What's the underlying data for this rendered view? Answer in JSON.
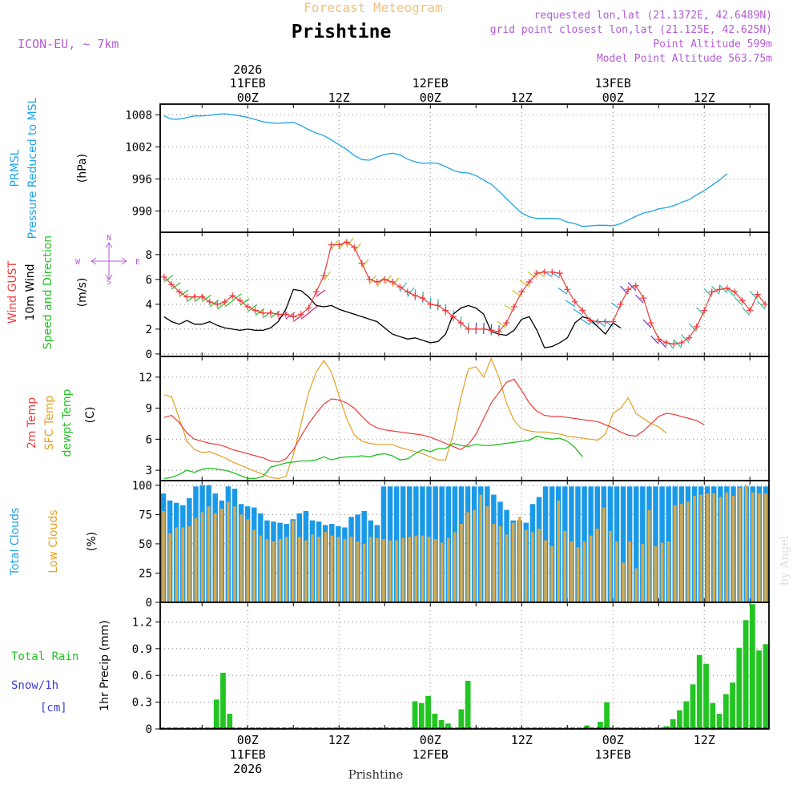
{
  "header": {
    "product": "Forecast Meteogram",
    "location": "Prishtine",
    "model": "ICON-EU, ~ 7km",
    "requested": "requested lon,lat (21.1372E, 42.6489N)",
    "grid_point": "grid point closest lon,lat (21.125E, 42.625N)",
    "point_altitude": "Point Altitude 599m",
    "model_altitude": "Model Point Altitude 563.75m",
    "footer_location": "Prishtine",
    "watermark": "by Angel"
  },
  "colors": {
    "pressure": "#1fa3e6",
    "gust": "#ee3b3b",
    "wind": "#000000",
    "t2m": "#ee3b3b",
    "sfc": "#e5a020",
    "dewpt": "#22c022",
    "total_clouds": "#1a99e8",
    "low_clouds": "#d9a84a",
    "rain": "#22c522",
    "snow": "#3b3bd9",
    "label_purple": "#b45bd6",
    "title_orange": "#f0c080"
  },
  "time_axis": {
    "top_labels": [
      {
        "hour": 0,
        "l1": "2026",
        "l2": "11FEB",
        "l3": "00Z"
      },
      {
        "hour": 12,
        "l1": "",
        "l2": "",
        "l3": "12Z"
      },
      {
        "hour": 24,
        "l1": "",
        "l2": "12FEB",
        "l3": "00Z"
      },
      {
        "hour": 36,
        "l1": "",
        "l2": "",
        "l3": "12Z"
      },
      {
        "hour": 48,
        "l1": "",
        "l2": "13FEB",
        "l3": "00Z"
      },
      {
        "hour": 60,
        "l1": "",
        "l2": "",
        "l3": "12Z"
      }
    ],
    "bottom_labels": [
      {
        "hour": 0,
        "l1": "00Z",
        "l2": "11FEB",
        "l3": "2026"
      },
      {
        "hour": 12,
        "l1": "12Z",
        "l2": "",
        "l3": ""
      },
      {
        "hour": 24,
        "l1": "00Z",
        "l2": "12FEB",
        "l3": ""
      },
      {
        "hour": 36,
        "l1": "12Z",
        "l2": "",
        "l3": ""
      },
      {
        "hour": 48,
        "l1": "00Z",
        "l2": "13FEB",
        "l3": ""
      },
      {
        "hour": 60,
        "l1": "12Z",
        "l2": "",
        "l3": ""
      }
    ]
  },
  "chart_data": [
    {
      "type": "line",
      "name": "pressure",
      "ylabel_lines": [
        "PRMSL",
        "Pressure Reduced to MSL"
      ],
      "unit": "(hPa)",
      "ylim": [
        986,
        1010
      ],
      "yticks": [
        990,
        996,
        1002,
        1008
      ],
      "hour_start": -11,
      "hour_step": 1,
      "series": [
        {
          "name": "PRMSL",
          "values": [
            1007.8,
            1007.2,
            1007.2,
            1007.5,
            1007.8,
            1007.8,
            1007.9,
            1008.1,
            1008.2,
            1008.0,
            1007.8,
            1007.5,
            1007.1,
            1006.7,
            1006.5,
            1006.4,
            1006.5,
            1006.6,
            1006.0,
            1005.2,
            1004.6,
            1004.1,
            1003.3,
            1002.4,
            1001.5,
            1000.4,
            999.6,
            999.5,
            1000.1,
            1000.6,
            1000.8,
            1000.5,
            999.7,
            999.2,
            998.9,
            999.0,
            998.9,
            998.3,
            997.6,
            997.2,
            997.1,
            996.6,
            995.8,
            995.0,
            993.7,
            992.3,
            990.9,
            989.6,
            988.9,
            988.6,
            988.6,
            988.6,
            988.5,
            987.9,
            987.6,
            987.1,
            987.2,
            987.3,
            987.3,
            987.2,
            987.6,
            988.3,
            989.0,
            989.6,
            989.9,
            990.4,
            990.6,
            991.0,
            991.6,
            992.1,
            993.0,
            993.8,
            994.8,
            995.8,
            997.0
          ]
        }
      ]
    },
    {
      "type": "line",
      "name": "wind",
      "ylabel_lines": [
        "Wind GUST",
        "10m Wind",
        "Speed and Direction"
      ],
      "unit": "(m/s)",
      "compass": {
        "n": "N",
        "s": "S",
        "w": "W",
        "e": "E"
      },
      "ylim": [
        -0.2,
        9.8
      ],
      "yticks": [
        0,
        2,
        4,
        6,
        8
      ],
      "hour_start": -11,
      "hour_step": 1,
      "series": [
        {
          "name": "Wind GUST",
          "values": [
            6.2,
            5.6,
            5.0,
            4.6,
            4.6,
            4.6,
            4.2,
            4.0,
            4.2,
            4.7,
            4.3,
            3.8,
            3.5,
            3.3,
            3.3,
            3.2,
            3.2,
            3.0,
            3.2,
            3.7,
            5.0,
            6.3,
            8.8,
            8.8,
            9.0,
            8.6,
            7.3,
            6.0,
            5.8,
            6.0,
            5.8,
            5.4,
            5.0,
            4.7,
            4.5,
            4.0,
            3.9,
            3.5,
            3.0,
            2.5,
            2.0,
            2.0,
            2.0,
            1.9,
            1.8,
            2.5,
            3.8,
            5.0,
            5.8,
            6.5,
            6.6,
            6.6,
            6.5,
            5.2,
            4.2,
            3.5,
            2.7,
            2.6,
            2.6,
            2.6,
            4.0,
            5.2,
            5.5,
            4.5,
            2.5,
            1.2,
            0.9,
            0.8,
            0.9,
            1.3,
            2.2,
            3.5,
            5.0,
            5.2,
            5.3,
            5.0,
            4.3,
            3.5,
            4.8,
            4.0
          ]
        },
        {
          "name": "10m Wind",
          "values": [
            3.0,
            2.6,
            2.4,
            2.7,
            2.4,
            2.4,
            2.6,
            2.3,
            2.1,
            2.0,
            1.9,
            2.0,
            1.9,
            1.9,
            2.1,
            2.6,
            3.6,
            5.2,
            5.1,
            4.6,
            3.9,
            3.8,
            3.9,
            3.6,
            3.4,
            3.2,
            3.0,
            2.8,
            2.6,
            2.1,
            1.6,
            1.4,
            1.2,
            1.3,
            1.1,
            0.9,
            1.0,
            1.6,
            3.2,
            3.7,
            3.9,
            3.7,
            3.2,
            1.8,
            1.6,
            1.5,
            1.9,
            2.8,
            3.0,
            1.9,
            0.5,
            0.6,
            0.9,
            1.3,
            2.5,
            3.0,
            2.8,
            2.2,
            1.6,
            2.5,
            2.1
          ]
        }
      ],
      "wind_hour_start": -11,
      "wind_hour_start_gust": -11
    },
    {
      "type": "line",
      "name": "temperature",
      "ylabel_lines": [
        "2m Temp",
        "SFC Temp",
        "dewpt Temp"
      ],
      "unit": "(C)",
      "ylim": [
        2,
        14
      ],
      "yticks": [
        3,
        6,
        9,
        12
      ],
      "hour_start": -11,
      "hour_step": 1,
      "series": [
        {
          "name": "2m Temp",
          "values": [
            8.1,
            8.3,
            7.6,
            6.6,
            6.0,
            5.8,
            5.6,
            5.5,
            5.3,
            5.0,
            4.8,
            4.6,
            4.4,
            4.2,
            3.9,
            3.8,
            4.1,
            5.0,
            6.3,
            7.5,
            8.5,
            9.4,
            9.9,
            9.8,
            9.5,
            9.0,
            8.2,
            7.5,
            7.1,
            6.9,
            6.8,
            6.7,
            6.6,
            6.5,
            6.4,
            6.2,
            5.9,
            5.6,
            5.3,
            5.0,
            5.5,
            6.5,
            8.0,
            9.5,
            10.5,
            11.5,
            11.8,
            10.7,
            9.5,
            8.7,
            8.3,
            8.2,
            8.2,
            8.1,
            8.0,
            7.9,
            7.8,
            7.7,
            7.4,
            7.1,
            6.7,
            6.4,
            6.3,
            6.8,
            7.5,
            8.2,
            8.5,
            8.4,
            8.2,
            8.0,
            7.8,
            7.4
          ]
        },
        {
          "name": "SFC Temp",
          "values": [
            10.3,
            10.1,
            8.0,
            5.8,
            5.0,
            4.7,
            4.8,
            4.5,
            4.2,
            3.8,
            3.5,
            3.2,
            2.9,
            2.6,
            2.3,
            2.2,
            2.4,
            4.5,
            7.5,
            10.5,
            12.5,
            13.6,
            12.5,
            10.2,
            8.0,
            6.4,
            5.8,
            5.6,
            5.5,
            5.5,
            5.5,
            5.2,
            5.0,
            4.8,
            4.6,
            4.3,
            4.0,
            4.0,
            6.5,
            10.0,
            12.8,
            13.0,
            12.0,
            13.8,
            12.0,
            9.5,
            7.8,
            7.0,
            6.8,
            6.7,
            6.7,
            6.6,
            6.5,
            6.3,
            6.2,
            6.1,
            6.0,
            5.9,
            6.5,
            8.5,
            9.0,
            10.0,
            8.5,
            8.0,
            7.5,
            7.2,
            6.6
          ]
        },
        {
          "name": "dewpt Temp",
          "values": [
            2.2,
            2.3,
            2.6,
            3.0,
            2.8,
            3.1,
            3.2,
            3.1,
            3.0,
            2.8,
            2.5,
            2.2,
            2.2,
            2.4,
            3.3,
            3.5,
            3.7,
            3.8,
            3.9,
            3.9,
            4.0,
            4.3,
            4.0,
            4.2,
            4.3,
            4.3,
            4.4,
            4.3,
            4.5,
            4.6,
            4.4,
            4.0,
            4.1,
            4.6,
            5.0,
            4.8,
            5.1,
            5.1,
            5.6,
            5.4,
            5.3,
            5.5,
            5.4,
            5.4,
            5.5,
            5.6,
            5.7,
            5.8,
            5.9,
            6.3,
            6.1,
            6.0,
            6.1,
            5.8,
            5.2,
            4.3
          ]
        }
      ],
      "dewpt_hour_start": -11
    },
    {
      "type": "bar",
      "name": "clouds",
      "ylabel_lines": [
        "Total Clouds",
        "Low Clouds"
      ],
      "unit": "(%)",
      "ylim": [
        0,
        104
      ],
      "yticks": [
        0,
        25,
        50,
        75,
        100
      ],
      "hour_start": -11,
      "hour_step": 1,
      "series": [
        {
          "name": "Total Clouds",
          "values": [
            93,
            87,
            85,
            83,
            89,
            99,
            100,
            100,
            93,
            87,
            99,
            97,
            84,
            82,
            81,
            76,
            70,
            69,
            68,
            67,
            71,
            76,
            78,
            70,
            69,
            66,
            67,
            65,
            64,
            73,
            75,
            78,
            70,
            66,
            99,
            99,
            99,
            99,
            99,
            99,
            99,
            99,
            99,
            99,
            99,
            99,
            99,
            99,
            99,
            99,
            99,
            92,
            86,
            79,
            70,
            70,
            68,
            84,
            90,
            99,
            99,
            99,
            99,
            99,
            99,
            99,
            99,
            99,
            99,
            99,
            99,
            99,
            99,
            99,
            99,
            99,
            99,
            99,
            99,
            99,
            99,
            99,
            99,
            99,
            99,
            99,
            99,
            99,
            99,
            99,
            99,
            99,
            99,
            99
          ]
        },
        {
          "name": "Low Clouds",
          "values": [
            78,
            59,
            64,
            64,
            65,
            72,
            77,
            82,
            76,
            80,
            86,
            82,
            75,
            71,
            62,
            57,
            54,
            52,
            54,
            56,
            70,
            56,
            53,
            58,
            56,
            60,
            57,
            56,
            54,
            56,
            52,
            50,
            56,
            55,
            54,
            53,
            53,
            55,
            56,
            57,
            57,
            56,
            54,
            51,
            55,
            60,
            67,
            77,
            79,
            92,
            82,
            67,
            65,
            58,
            68,
            73,
            62,
            60,
            63,
            53,
            48,
            87,
            61,
            52,
            47,
            52,
            57,
            63,
            81,
            61,
            52,
            34,
            52,
            29,
            50,
            79,
            48,
            51,
            52,
            83,
            84,
            86,
            91,
            92,
            93,
            93,
            90,
            94,
            91,
            98,
            100,
            94,
            93,
            93
          ]
        }
      ]
    },
    {
      "type": "bar",
      "name": "precip",
      "ylabel_lines": [
        "Total Rain",
        "Snow/1h",
        "[cm]"
      ],
      "unit": "1hr Precip (mm)",
      "ylim": [
        0,
        1.42
      ],
      "yticks": [
        0,
        0.3,
        0.6,
        0.9,
        1.2
      ],
      "hour_start": -11,
      "hour_step": 1,
      "series": [
        {
          "name": "Total Rain",
          "values": [
            0,
            0,
            0,
            0,
            0,
            0,
            0,
            0,
            0.33,
            0.63,
            0.17,
            0,
            0.01,
            0,
            0,
            0,
            0,
            0,
            0,
            0,
            0,
            0,
            0,
            0,
            0,
            0,
            0,
            0,
            0,
            0,
            0,
            0,
            0,
            0,
            0,
            0,
            0,
            0.01,
            0.31,
            0.29,
            0.37,
            0.17,
            0.1,
            0.06,
            0,
            0.22,
            0.54,
            0,
            0,
            0,
            0,
            0,
            0,
            0,
            0,
            0,
            0,
            0,
            0,
            0,
            0,
            0,
            0,
            0,
            0.04,
            0,
            0.08,
            0.3,
            0,
            0,
            0,
            0,
            0,
            0,
            0,
            0,
            0.03,
            0.11,
            0.21,
            0.31,
            0.5,
            0.83,
            0.73,
            0.29,
            0.17,
            0.39,
            0.52,
            0.91,
            1.22,
            1.4,
            0.88,
            0.95
          ]
        }
      ]
    }
  ]
}
